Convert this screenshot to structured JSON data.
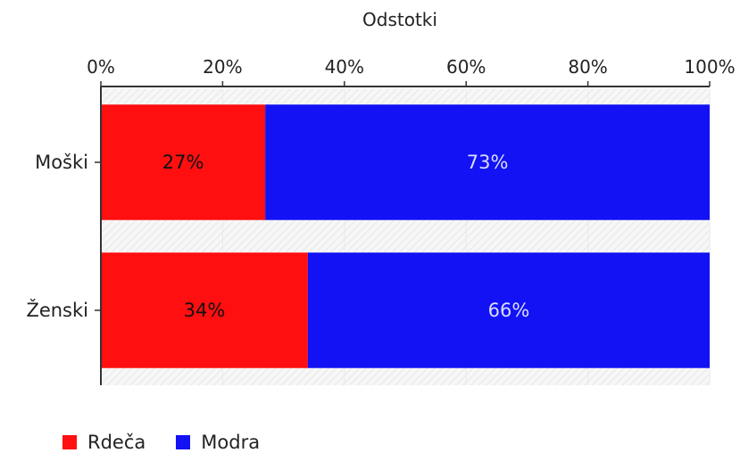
{
  "chart_data": {
    "type": "bar",
    "orientation": "horizontal",
    "stacked": true,
    "title": "",
    "xlabel": "Odstotki",
    "ylabel": "",
    "xlim": [
      0,
      100
    ],
    "x_ticks": [
      "0%",
      "20%",
      "40%",
      "60%",
      "80%",
      "100%"
    ],
    "x_axis_position": "top",
    "grid": true,
    "legend_position": "bottom-left",
    "categories": [
      "Moški",
      "Ženski"
    ],
    "series": [
      {
        "name": "Rdeča",
        "color": "#ff0f0f",
        "label_color": "#111111",
        "values": [
          27,
          34
        ]
      },
      {
        "name": "Modra",
        "color": "#1212f5",
        "label_color": "#dcdcff",
        "values": [
          73,
          66
        ]
      }
    ]
  }
}
